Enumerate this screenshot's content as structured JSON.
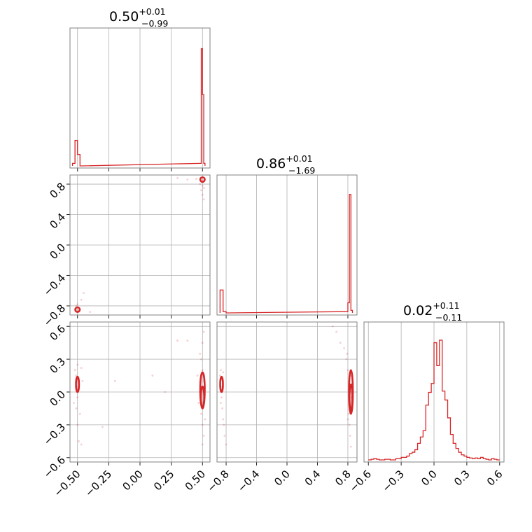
{
  "chart_data": {
    "type": "corner",
    "color": "#d62728",
    "grid": true,
    "parameters": [
      {
        "title": {
          "value": "0.50",
          "upper": "+0.01",
          "lower": "−0.99"
        },
        "lim": [
          -0.56,
          0.56
        ],
        "ticks": [
          -0.5,
          -0.25,
          0.0,
          0.25,
          0.5
        ],
        "tick_labels": [
          "−0.50",
          "−0.25",
          "0.00",
          "0.25",
          "0.50"
        ]
      },
      {
        "title": {
          "value": "0.86",
          "upper": "+0.01",
          "lower": "−1.69"
        },
        "lim": [
          -0.92,
          0.92
        ],
        "ticks": [
          -0.8,
          -0.4,
          0.0,
          0.4,
          0.8
        ],
        "tick_labels": [
          "−0.8",
          "−0.4",
          "0.0",
          "0.4",
          "0.8"
        ]
      },
      {
        "title": {
          "value": "0.02",
          "upper": "+0.11",
          "lower": "−0.11"
        },
        "lim": [
          -0.64,
          0.64
        ],
        "ticks": [
          -0.6,
          -0.3,
          0.0,
          0.3,
          0.6
        ],
        "tick_labels": [
          "−0.6",
          "−0.3",
          "0.0",
          "0.3",
          "0.6"
        ]
      }
    ],
    "histograms": [
      {
        "parameter": 0,
        "bins": [
          [
            -0.54,
            -0.52,
            0.02
          ],
          [
            -0.52,
            -0.5,
            0.2
          ],
          [
            -0.5,
            -0.48,
            0.09
          ],
          [
            -0.48,
            -0.46,
            0.0
          ],
          [
            0.48,
            0.49,
            0.02
          ],
          [
            0.49,
            0.5,
            0.92
          ],
          [
            0.5,
            0.51,
            0.56
          ],
          [
            0.51,
            0.52,
            0.02
          ]
        ]
      },
      {
        "parameter": 1,
        "bins": [
          [
            -0.88,
            -0.84,
            0.18
          ],
          [
            -0.84,
            -0.8,
            0.01
          ],
          [
            -0.8,
            -0.76,
            0.0
          ],
          [
            0.76,
            0.8,
            0.01
          ],
          [
            0.8,
            0.82,
            0.08
          ],
          [
            0.82,
            0.84,
            0.93
          ],
          [
            0.84,
            0.86,
            0.02
          ]
        ]
      },
      {
        "parameter": 2,
        "bins": [
          [
            -0.6,
            -0.575,
            0.0
          ],
          [
            -0.575,
            -0.55,
            0.005
          ],
          [
            -0.55,
            -0.525,
            0.01
          ],
          [
            -0.525,
            -0.5,
            0.005
          ],
          [
            -0.5,
            -0.475,
            0.0
          ],
          [
            -0.475,
            -0.45,
            0.0
          ],
          [
            -0.45,
            -0.425,
            0.005
          ],
          [
            -0.425,
            -0.4,
            0.005
          ],
          [
            -0.4,
            -0.375,
            0.0
          ],
          [
            -0.375,
            -0.35,
            0.0
          ],
          [
            -0.35,
            -0.325,
            0.01
          ],
          [
            -0.325,
            -0.3,
            0.01
          ],
          [
            -0.3,
            -0.275,
            0.02
          ],
          [
            -0.275,
            -0.25,
            0.02
          ],
          [
            -0.25,
            -0.225,
            0.03
          ],
          [
            -0.225,
            -0.2,
            0.05
          ],
          [
            -0.2,
            -0.175,
            0.06
          ],
          [
            -0.175,
            -0.15,
            0.08
          ],
          [
            -0.15,
            -0.125,
            0.13
          ],
          [
            -0.125,
            -0.1,
            0.18
          ],
          [
            -0.1,
            -0.075,
            0.23
          ],
          [
            -0.075,
            -0.05,
            0.43
          ],
          [
            -0.05,
            -0.025,
            0.53
          ],
          [
            -0.025,
            0.0,
            0.6
          ],
          [
            0.0,
            0.025,
            0.92
          ],
          [
            0.025,
            0.05,
            0.74
          ],
          [
            0.05,
            0.075,
            0.94
          ],
          [
            0.075,
            0.1,
            0.54
          ],
          [
            0.1,
            0.125,
            0.47
          ],
          [
            0.125,
            0.15,
            0.33
          ],
          [
            0.15,
            0.175,
            0.2
          ],
          [
            0.175,
            0.2,
            0.13
          ],
          [
            0.2,
            0.225,
            0.09
          ],
          [
            0.225,
            0.25,
            0.06
          ],
          [
            0.25,
            0.275,
            0.04
          ],
          [
            0.275,
            0.3,
            0.03
          ],
          [
            0.3,
            0.325,
            0.02
          ],
          [
            0.325,
            0.35,
            0.015
          ],
          [
            0.35,
            0.375,
            0.01
          ],
          [
            0.375,
            0.4,
            0.015
          ],
          [
            0.4,
            0.425,
            0.01
          ],
          [
            0.425,
            0.45,
            0.02
          ],
          [
            0.45,
            0.475,
            0.01
          ],
          [
            0.475,
            0.5,
            0.005
          ],
          [
            0.5,
            0.525,
            0.0
          ],
          [
            0.525,
            0.55,
            0.01
          ],
          [
            0.55,
            0.575,
            0.005
          ],
          [
            0.575,
            0.6,
            0.0
          ]
        ]
      }
    ],
    "scatter": [
      {
        "x_param": 0,
        "y_param": 1,
        "points": [
          [
            -0.51,
            -0.85
          ],
          [
            -0.5,
            -0.87
          ],
          [
            -0.49,
            -0.86
          ],
          [
            -0.5,
            -0.78
          ],
          [
            -0.47,
            -0.72
          ],
          [
            -0.45,
            -0.63
          ],
          [
            -0.51,
            -0.8
          ],
          [
            -0.48,
            -0.84
          ],
          [
            -0.4,
            -0.88
          ],
          [
            0.49,
            0.86
          ],
          [
            0.5,
            0.84
          ],
          [
            0.51,
            0.85
          ],
          [
            0.5,
            0.78
          ],
          [
            0.49,
            0.72
          ],
          [
            0.5,
            0.66
          ],
          [
            0.51,
            0.75
          ],
          [
            0.48,
            0.8
          ],
          [
            0.38,
            0.86
          ],
          [
            0.3,
            0.88
          ],
          [
            0.45,
            0.87
          ],
          [
            0.51,
            0.6
          ]
        ]
      },
      {
        "x_param": 0,
        "y_param": 2,
        "points": [
          [
            -0.52,
            0.2
          ],
          [
            -0.51,
            0.15
          ],
          [
            -0.5,
            0.12
          ],
          [
            -0.49,
            0.05
          ],
          [
            -0.5,
            -0.05
          ],
          [
            -0.51,
            -0.15
          ],
          [
            -0.5,
            -0.3
          ],
          [
            -0.49,
            -0.45
          ],
          [
            -0.47,
            0.22
          ],
          [
            -0.48,
            -0.2
          ],
          [
            -0.53,
            -0.1
          ],
          [
            -0.5,
            0.25
          ],
          [
            -0.47,
            -0.48
          ],
          [
            -0.46,
            0.1
          ],
          [
            -0.3,
            -0.32
          ],
          [
            -0.2,
            0.1
          ],
          [
            0.1,
            0.15
          ],
          [
            0.2,
            0.0
          ],
          [
            0.3,
            0.47
          ],
          [
            0.38,
            0.47
          ],
          [
            0.48,
            0.35
          ],
          [
            0.5,
            0.45
          ],
          [
            0.51,
            0.55
          ],
          [
            0.49,
            0.3
          ],
          [
            0.5,
            0.2
          ],
          [
            0.51,
            0.1
          ],
          [
            0.5,
            -0.1
          ],
          [
            0.49,
            -0.2
          ],
          [
            0.5,
            -0.3
          ],
          [
            0.51,
            -0.4
          ],
          [
            0.5,
            -0.48
          ],
          [
            0.48,
            0.0
          ],
          [
            0.52,
            0.05
          ],
          [
            0.47,
            -0.1
          ],
          [
            0.46,
            0.15
          ],
          [
            0.52,
            -0.25
          ]
        ]
      },
      {
        "x_param": 1,
        "y_param": 2,
        "points": [
          [
            -0.87,
            0.2
          ],
          [
            -0.86,
            0.12
          ],
          [
            -0.85,
            0.05
          ],
          [
            -0.86,
            -0.05
          ],
          [
            -0.85,
            -0.15
          ],
          [
            -0.84,
            -0.25
          ],
          [
            -0.83,
            -0.3
          ],
          [
            -0.82,
            -0.4
          ],
          [
            -0.8,
            -0.48
          ],
          [
            -0.88,
            0.15
          ],
          [
            -0.84,
            0.18
          ],
          [
            -0.87,
            -0.1
          ],
          [
            0.6,
            0.6
          ],
          [
            0.65,
            0.55
          ],
          [
            0.7,
            0.45
          ],
          [
            0.75,
            0.4
          ],
          [
            0.78,
            0.3
          ],
          [
            0.8,
            0.2
          ],
          [
            0.82,
            0.1
          ],
          [
            0.83,
            0.0
          ],
          [
            0.82,
            -0.1
          ],
          [
            0.81,
            -0.2
          ],
          [
            0.82,
            -0.3
          ],
          [
            0.83,
            -0.4
          ],
          [
            0.84,
            -0.5
          ],
          [
            0.8,
            -0.25
          ],
          [
            0.79,
            0.35
          ],
          [
            0.84,
            0.15
          ],
          [
            0.85,
            -0.05
          ]
        ]
      }
    ],
    "contours": [
      {
        "x_param": 0,
        "y_param": 1,
        "blobs": [
          {
            "cx": -0.5,
            "cy": -0.85,
            "rx": 0.018,
            "ry": 0.03
          },
          {
            "cx": 0.5,
            "cy": 0.86,
            "rx": 0.018,
            "ry": 0.03
          }
        ]
      },
      {
        "x_param": 0,
        "y_param": 2,
        "blobs": [
          {
            "cx": -0.5,
            "cy": 0.07,
            "rx": 0.012,
            "ry": 0.07
          },
          {
            "cx": 0.5,
            "cy": 0.02,
            "rx": 0.018,
            "ry": 0.16
          },
          {
            "cx": 0.5,
            "cy": -0.05,
            "rx": 0.013,
            "ry": 0.1
          }
        ]
      },
      {
        "x_param": 1,
        "y_param": 2,
        "blobs": [
          {
            "cx": -0.86,
            "cy": 0.07,
            "rx": 0.018,
            "ry": 0.07
          },
          {
            "cx": 0.84,
            "cy": 0.0,
            "rx": 0.025,
            "ry": 0.2
          },
          {
            "cx": 0.84,
            "cy": -0.05,
            "rx": 0.018,
            "ry": 0.12
          }
        ]
      }
    ]
  }
}
